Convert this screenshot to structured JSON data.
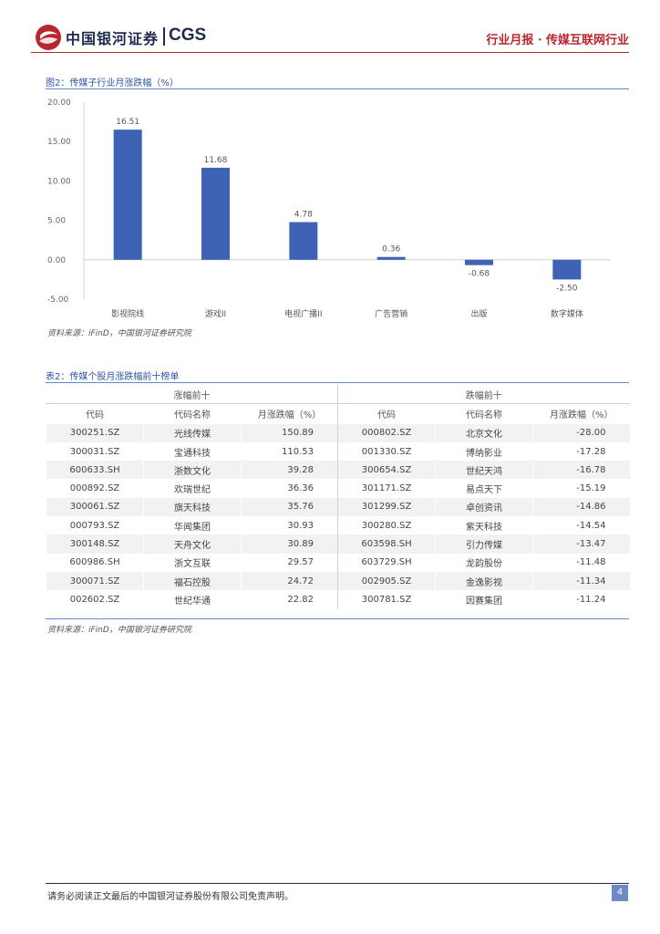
{
  "header": {
    "logo_cn": "中国银河证券",
    "logo_en": "CGS",
    "report_tag": "行业月报 · 传媒互联网行业",
    "colors": {
      "brand_red": "#b8272d",
      "brand_navy": "#1f2b4d",
      "accent_blue": "#2e55a7",
      "bar_blue": "#3e63b6"
    }
  },
  "figure": {
    "caption": "图2：传媒子行业月涨跌幅（%）",
    "source": "资料来源：iFinD，中国银河证券研究院"
  },
  "chart_data": {
    "type": "bar",
    "title": "",
    "xlabel": "",
    "ylabel": "",
    "categories": [
      "影视院线",
      "游戏II",
      "电视广播II",
      "广告营销",
      "出版",
      "数字媒体"
    ],
    "values": [
      16.51,
      11.68,
      4.78,
      0.36,
      -0.68,
      -2.5
    ],
    "value_labels": [
      "16.51",
      "11.68",
      "4.78",
      "0.36",
      "-0.68",
      "-2.50"
    ],
    "y_ticks": [
      "20.00",
      "15.00",
      "10.00",
      "5.00",
      "0.00",
      "-5.00"
    ],
    "ylim": [
      -5,
      20
    ],
    "grid": false,
    "legend": "none",
    "bar_color": "#3e63b6"
  },
  "table": {
    "caption": "表2：传媒个股月涨跌幅前十榜单",
    "group_up": "涨幅前十",
    "group_down": "跌幅前十",
    "columns": [
      "代码",
      "代码名称",
      "月涨跌幅（%）",
      "代码",
      "代码名称",
      "月涨跌幅（%）"
    ],
    "rows": [
      [
        "300251.SZ",
        "光线传媒",
        "150.89",
        "000802.SZ",
        "北京文化",
        "-28.00"
      ],
      [
        "300031.SZ",
        "宝通科技",
        "110.53",
        "001330.SZ",
        "博纳影业",
        "-17.28"
      ],
      [
        "600633.SH",
        "浙数文化",
        "39.28",
        "300654.SZ",
        "世纪天鸿",
        "-16.78"
      ],
      [
        "000892.SZ",
        "欢瑞世纪",
        "36.36",
        "301171.SZ",
        "易点天下",
        "-15.19"
      ],
      [
        "300061.SZ",
        "旗天科技",
        "35.76",
        "301299.SZ",
        "卓创资讯",
        "-14.86"
      ],
      [
        "000793.SZ",
        "华闻集团",
        "30.93",
        "300280.SZ",
        "紫天科技",
        "-14.54"
      ],
      [
        "300148.SZ",
        "天舟文化",
        "30.89",
        "603598.SH",
        "引力传媒",
        "-13.47"
      ],
      [
        "600986.SH",
        "浙文互联",
        "29.57",
        "603729.SH",
        "龙韵股份",
        "-11.48"
      ],
      [
        "300071.SZ",
        "福石控股",
        "24.72",
        "002905.SZ",
        "金逸影视",
        "-11.34"
      ],
      [
        "002602.SZ",
        "世纪华通",
        "22.82",
        "300781.SZ",
        "因赛集团",
        "-11.24"
      ]
    ],
    "source": "资料来源：iFinD，中国银河证券研究院"
  },
  "footer": {
    "disclaimer": "请务必阅读正文最后的中国银河证券股份有限公司免责声明。",
    "page": "4"
  }
}
